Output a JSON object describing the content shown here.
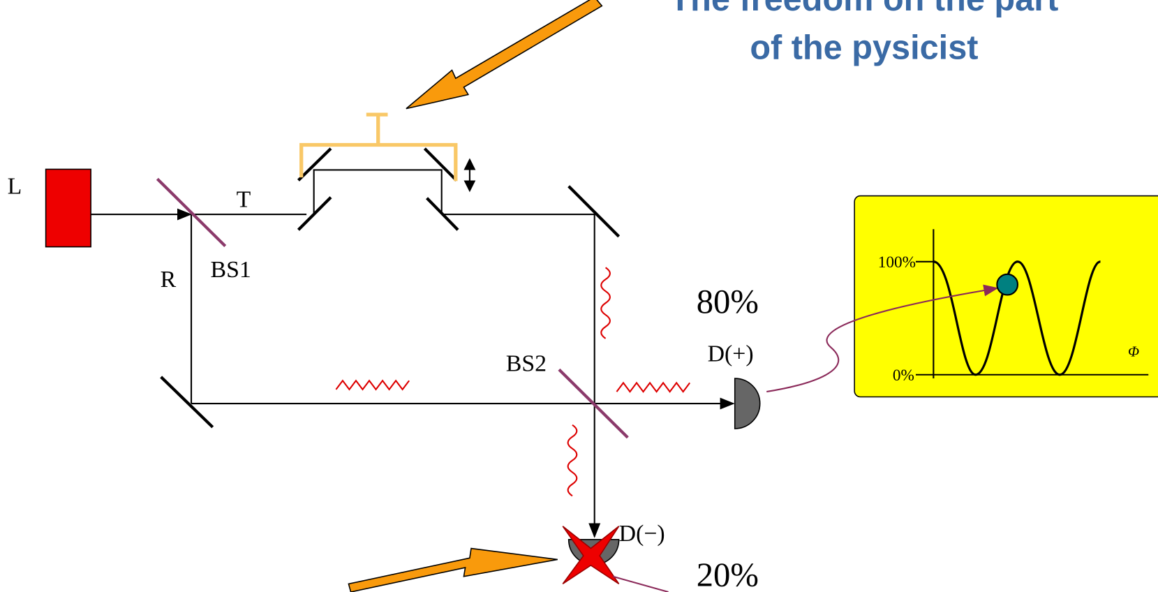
{
  "title": {
    "line1": "The freedom on the part",
    "line2": "of the pysicist"
  },
  "labels": {
    "laser": "L",
    "transmitted": "T",
    "reflected": "R",
    "bs1": "BS1",
    "bs2": "BS2",
    "plus_percent": "80%",
    "plus_detector": "D(+)",
    "minus_detector": "D(−)",
    "minus_percent": "20%"
  },
  "graph": {
    "top_label": "100%",
    "bottom_label": "0%",
    "axis_label": "Φ"
  }
}
